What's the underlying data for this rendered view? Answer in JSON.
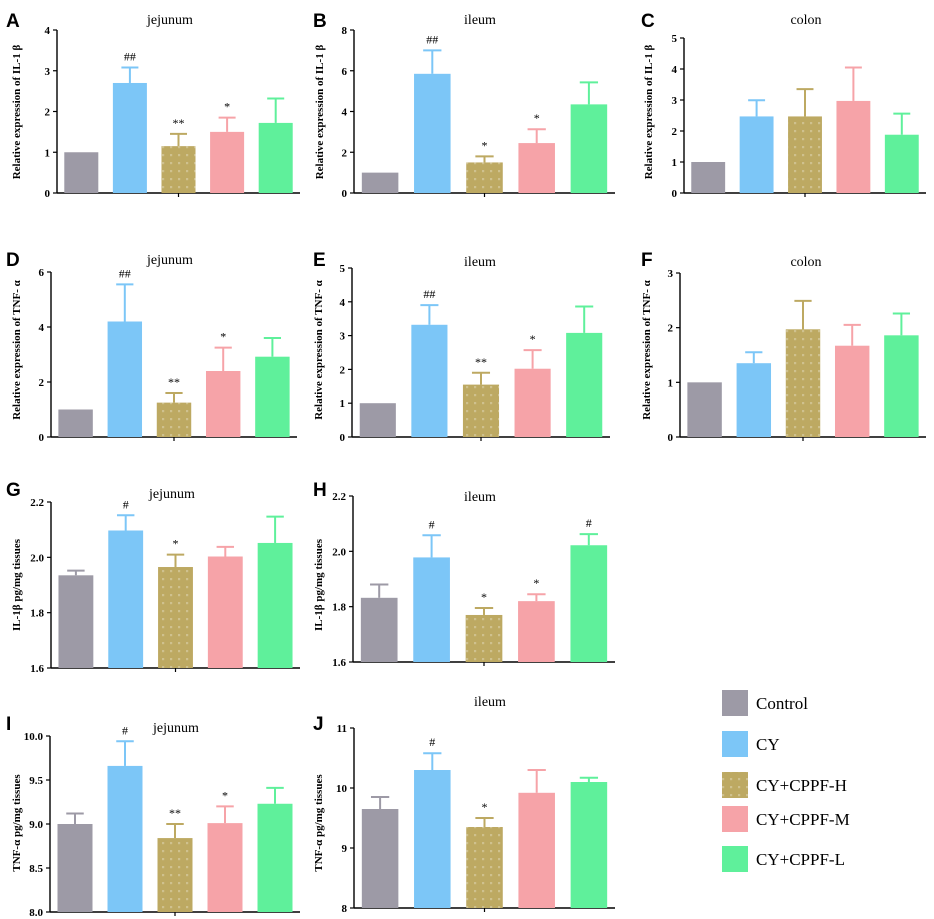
{
  "colors": {
    "Control": "#9d9aa6",
    "CY": "#7cc6f7",
    "CY+CPPF-H": "#bda962",
    "CY+CPPF-M": "#f6a3a8",
    "CY+CPPF-L": "#5ff09b"
  },
  "legend": [
    "Control",
    "CY",
    "CY+CPPF-H",
    "CY+CPPF-M",
    "CY+CPPF-L"
  ],
  "chart_data": [
    {
      "id": "A",
      "letter": "A",
      "type": "bar",
      "title": "jejunum",
      "ylabel": "Relative expression of IL-1 β",
      "ylim": [
        0,
        4
      ],
      "ticks": [
        0,
        1,
        2,
        3,
        4
      ],
      "tickLabels": [
        "0",
        "1",
        "2",
        "3",
        "4"
      ],
      "categories": [
        "Control",
        "CY",
        "CY+CPPF-H",
        "CY+CPPF-M",
        "CY+CPPF-L"
      ],
      "values": [
        1.0,
        2.7,
        1.15,
        1.5,
        1.72
      ],
      "errors": [
        0,
        0.38,
        0.3,
        0.35,
        0.6
      ],
      "annotations": [
        "",
        "##",
        "**",
        "*",
        ""
      ]
    },
    {
      "id": "B",
      "letter": "B",
      "type": "bar",
      "title": "ileum",
      "ylabel": "Relative expression of IL-1 β",
      "ylim": [
        0,
        8
      ],
      "ticks": [
        0,
        2,
        4,
        6,
        8
      ],
      "tickLabels": [
        "0",
        "2",
        "4",
        "6",
        "8"
      ],
      "categories": [
        "Control",
        "CY",
        "CY+CPPF-H",
        "CY+CPPF-M",
        "CY+CPPF-L"
      ],
      "values": [
        1.0,
        5.85,
        1.5,
        2.45,
        4.35
      ],
      "errors": [
        0,
        1.15,
        0.3,
        0.68,
        1.08
      ],
      "annotations": [
        "",
        "##",
        "*",
        "*",
        ""
      ]
    },
    {
      "id": "C",
      "letter": "C",
      "type": "bar",
      "title": "colon",
      "ylabel": "Relative expression of IL-1 β",
      "ylim": [
        0,
        5
      ],
      "ticks": [
        0,
        1,
        2,
        3,
        4,
        5
      ],
      "tickLabels": [
        "0",
        "1",
        "2",
        "3",
        "4",
        "5"
      ],
      "categories": [
        "Control",
        "CY",
        "CY+CPPF-H",
        "CY+CPPF-M",
        "CY+CPPF-L"
      ],
      "values": [
        1.0,
        2.47,
        2.47,
        2.97,
        1.88
      ],
      "errors": [
        0,
        0.52,
        0.88,
        1.08,
        0.68
      ],
      "annotations": [
        "",
        "",
        "",
        "",
        ""
      ]
    },
    {
      "id": "D",
      "letter": "D",
      "type": "bar",
      "title": "jejunum",
      "ylabel": "Relative expression of TNF- α",
      "ylim": [
        0,
        6
      ],
      "ticks": [
        0,
        2,
        4,
        6
      ],
      "tickLabels": [
        "0",
        "2",
        "4",
        "6"
      ],
      "categories": [
        "Control",
        "CY",
        "CY+CPPF-H",
        "CY+CPPF-M",
        "CY+CPPF-L"
      ],
      "values": [
        1.0,
        4.2,
        1.25,
        2.4,
        2.92
      ],
      "errors": [
        0,
        1.35,
        0.35,
        0.85,
        0.68
      ],
      "annotations": [
        "",
        "##",
        "**",
        "*",
        ""
      ]
    },
    {
      "id": "E",
      "letter": "E",
      "type": "bar",
      "title": "ileum",
      "ylabel": "Relative expression of TNF- α",
      "ylim": [
        0,
        5
      ],
      "ticks": [
        0,
        1,
        2,
        3,
        4,
        5
      ],
      "tickLabels": [
        "0",
        "1",
        "2",
        "3",
        "4",
        "5"
      ],
      "categories": [
        "Control",
        "CY",
        "CY+CPPF-H",
        "CY+CPPF-M",
        "CY+CPPF-L"
      ],
      "values": [
        1.0,
        3.32,
        1.55,
        2.02,
        3.08
      ],
      "errors": [
        0,
        0.58,
        0.35,
        0.55,
        0.78
      ],
      "annotations": [
        "",
        "##",
        "**",
        "*",
        ""
      ]
    },
    {
      "id": "F",
      "letter": "F",
      "type": "bar",
      "title": "colon",
      "ylabel": "Relative expression of TNF- α",
      "ylim": [
        0,
        3
      ],
      "ticks": [
        0,
        1,
        2,
        3
      ],
      "tickLabels": [
        "0",
        "1",
        "2",
        "3"
      ],
      "categories": [
        "Control",
        "CY",
        "CY+CPPF-H",
        "CY+CPPF-M",
        "CY+CPPF-L"
      ],
      "values": [
        1.0,
        1.35,
        1.97,
        1.67,
        1.86
      ],
      "errors": [
        0,
        0.2,
        0.52,
        0.38,
        0.4
      ],
      "annotations": [
        "",
        "",
        "",
        "",
        ""
      ]
    },
    {
      "id": "G",
      "letter": "G",
      "type": "bar",
      "title": "jejunum",
      "ylabel": "IL-1β pg/mg tissues",
      "ylim": [
        1.6,
        2.2
      ],
      "ticks": [
        1.6,
        1.8,
        2.0,
        2.2
      ],
      "tickLabels": [
        "1.6",
        "1.8",
        "2.0",
        "2.2"
      ],
      "categories": [
        "Control",
        "CY",
        "CY+CPPF-H",
        "CY+CPPF-M",
        "CY+CPPF-L"
      ],
      "values": [
        1.935,
        2.097,
        1.965,
        2.003,
        2.052
      ],
      "errors": [
        0.017,
        0.055,
        0.045,
        0.035,
        0.095
      ],
      "annotations": [
        "",
        "#",
        "*",
        "",
        ""
      ]
    },
    {
      "id": "H",
      "letter": "H",
      "type": "bar",
      "title": "ileum",
      "ylabel": "IL-1β pg/mg tissues",
      "ylim": [
        1.6,
        2.2
      ],
      "ticks": [
        1.6,
        1.8,
        2.0,
        2.2
      ],
      "tickLabels": [
        "1.6",
        "1.8",
        "2.0",
        "2.2"
      ],
      "categories": [
        "Control",
        "CY",
        "CY+CPPF-H",
        "CY+CPPF-M",
        "CY+CPPF-L"
      ],
      "values": [
        1.832,
        1.978,
        1.77,
        1.82,
        2.022
      ],
      "errors": [
        0.048,
        0.08,
        0.025,
        0.025,
        0.04
      ],
      "annotations": [
        "",
        "#",
        "*",
        "*",
        "#"
      ]
    },
    {
      "id": "I",
      "letter": "I",
      "type": "bar",
      "title": "jejunum",
      "ylabel": "TNF-α pg/mg tissues",
      "ylim": [
        8.0,
        10.0
      ],
      "ticks": [
        8.0,
        8.5,
        9.0,
        9.5,
        10.0
      ],
      "tickLabels": [
        "8.0",
        "8.5",
        "9.0",
        "9.5",
        "10.0"
      ],
      "categories": [
        "Control",
        "CY",
        "CY+CPPF-H",
        "CY+CPPF-M",
        "CY+CPPF-L"
      ],
      "values": [
        9.0,
        9.66,
        8.84,
        9.01,
        9.23
      ],
      "errors": [
        0.12,
        0.28,
        0.16,
        0.19,
        0.18
      ],
      "annotations": [
        "",
        "#",
        "**",
        "*",
        ""
      ]
    },
    {
      "id": "J",
      "letter": "J",
      "type": "bar",
      "title": "ileum",
      "ylabel": "TNF-α pg/mg tissues",
      "ylim": [
        8,
        11
      ],
      "ticks": [
        8,
        9,
        10,
        11
      ],
      "tickLabels": [
        "8",
        "9",
        "10",
        "11"
      ],
      "categories": [
        "Control",
        "CY",
        "CY+CPPF-H",
        "CY+CPPF-M",
        "CY+CPPF-L"
      ],
      "values": [
        9.65,
        10.3,
        9.35,
        9.92,
        10.1
      ],
      "errors": [
        0.2,
        0.28,
        0.15,
        0.38,
        0.07
      ],
      "annotations": [
        "",
        "#",
        "*",
        "",
        ""
      ]
    }
  ]
}
